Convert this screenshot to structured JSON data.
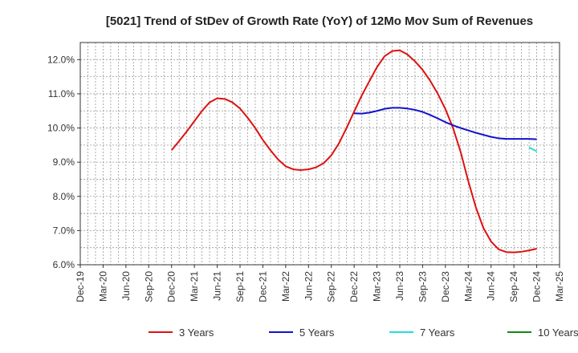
{
  "chart_data": {
    "type": "line",
    "title": "[5021]  Trend of StDev of Growth Rate (YoY) of 12Mo Mov Sum of Revenues",
    "xlabel": "",
    "ylabel": "",
    "x_ticks": [
      "Dec-19",
      "Mar-20",
      "Jun-20",
      "Sep-20",
      "Dec-20",
      "Mar-21",
      "Jun-21",
      "Sep-21",
      "Dec-21",
      "Mar-22",
      "Jun-22",
      "Sep-22",
      "Dec-22",
      "Mar-23",
      "Jun-23",
      "Sep-23",
      "Dec-23",
      "Mar-24",
      "Jun-24",
      "Sep-24",
      "Dec-24",
      "Mar-25"
    ],
    "y_ticks": [
      "6.0%",
      "7.0%",
      "8.0%",
      "9.0%",
      "10.0%",
      "11.0%",
      "12.0%"
    ],
    "ylim": [
      6.0,
      12.5
    ],
    "grid": true,
    "legend_position": "bottom",
    "series": [
      {
        "name": "3 Years",
        "color": "#dd1111",
        "start_index": 12,
        "values": [
          9.35,
          9.62,
          9.9,
          10.2,
          10.5,
          10.75,
          10.87,
          10.85,
          10.75,
          10.57,
          10.3,
          10.0,
          9.65,
          9.35,
          9.08,
          8.88,
          8.79,
          8.77,
          8.79,
          8.85,
          8.97,
          9.2,
          9.55,
          10.0,
          10.48,
          10.95,
          11.37,
          11.78,
          12.1,
          12.25,
          12.27,
          12.15,
          11.95,
          11.7,
          11.38,
          11.0,
          10.55,
          10.0,
          9.3,
          8.45,
          7.68,
          7.07,
          6.68,
          6.45,
          6.37,
          6.36,
          6.38,
          6.42,
          6.47
        ]
      },
      {
        "name": "5 Years",
        "color": "#1111cc",
        "start_index": 36,
        "values": [
          10.43,
          10.42,
          10.45,
          10.5,
          10.56,
          10.59,
          10.59,
          10.57,
          10.53,
          10.47,
          10.38,
          10.28,
          10.17,
          10.08,
          10.0,
          9.93,
          9.86,
          9.8,
          9.74,
          9.7,
          9.68,
          9.68,
          9.68,
          9.68,
          9.67
        ]
      },
      {
        "name": "7 Years",
        "color": "#22dddd",
        "start_index": 59,
        "values": [
          9.43,
          9.32
        ]
      },
      {
        "name": "10 Years",
        "color": "#118811",
        "start_index": 0,
        "values": []
      }
    ]
  }
}
